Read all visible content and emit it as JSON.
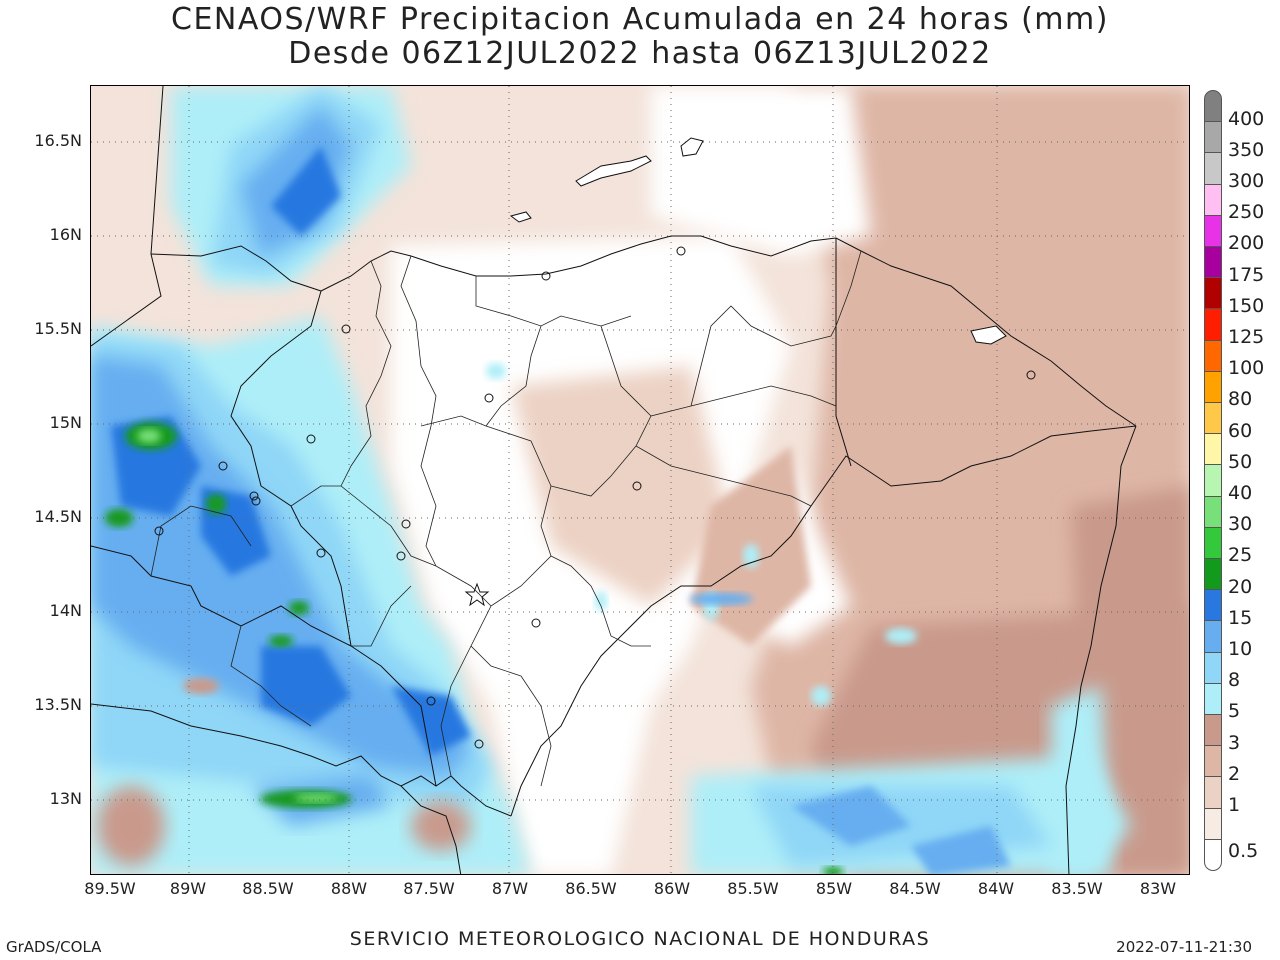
{
  "title": {
    "line1": "CENAOS/WRF Precipitacion Acumulada en 24 horas (mm)",
    "line2": "Desde 06Z12JUL2022 hasta 06Z13JUL2022"
  },
  "map": {
    "lon_range": [
      "89.5W",
      "82.75W"
    ],
    "lat_range": [
      "12.6N",
      "16.8N"
    ],
    "lat_ticks": [
      "16.5N",
      "16N",
      "15.5N",
      "15N",
      "14.5N",
      "14N",
      "13.5N",
      "13N"
    ],
    "lon_ticks": [
      "89.5W",
      "89W",
      "88.5W",
      "88W",
      "87.5W",
      "87W",
      "86.5W",
      "86W",
      "85.5W",
      "85W",
      "84.5W",
      "84W",
      "83.5W",
      "83W"
    ],
    "grid": "dotted",
    "features": [
      "coastline",
      "country-borders",
      "department-borders",
      "city-markers",
      "capital-star"
    ]
  },
  "colorbar": {
    "levels": [
      {
        "label": "0.5",
        "color": "#ffffff"
      },
      {
        "label": "1",
        "color": "#f7ece4"
      },
      {
        "label": "2",
        "color": "#ecd2c4"
      },
      {
        "label": "3",
        "color": "#deb6a6"
      },
      {
        "label": "5",
        "color": "#c99a8c"
      },
      {
        "label": "8",
        "color": "#aeeef8"
      },
      {
        "label": "10",
        "color": "#8fd6f7"
      },
      {
        "label": "15",
        "color": "#66aef0"
      },
      {
        "label": "20",
        "color": "#2878e0"
      },
      {
        "label": "25",
        "color": "#129a1c"
      },
      {
        "label": "30",
        "color": "#34c83c"
      },
      {
        "label": "40",
        "color": "#78e078"
      },
      {
        "label": "50",
        "color": "#b8f5b0"
      },
      {
        "label": "60",
        "color": "#fff6a8"
      },
      {
        "label": "80",
        "color": "#ffc848"
      },
      {
        "label": "100",
        "color": "#ffa200"
      },
      {
        "label": "125",
        "color": "#ff6800"
      },
      {
        "label": "150",
        "color": "#ff1e00"
      },
      {
        "label": "175",
        "color": "#b00000"
      },
      {
        "label": "200",
        "color": "#a8009e"
      },
      {
        "label": "250",
        "color": "#e832e8"
      },
      {
        "label": "300",
        "color": "#ffbff2"
      },
      {
        "label": "350",
        "color": "#c8c8c8"
      },
      {
        "label": "400",
        "color": "#a8a8a8"
      },
      {
        "label": "",
        "color": "#808080"
      }
    ]
  },
  "footer": {
    "left": "GrADS/COLA",
    "center": "SERVICIO METEOROLOGICO NACIONAL DE HONDURAS",
    "right": "2022-07-11-21:30"
  }
}
